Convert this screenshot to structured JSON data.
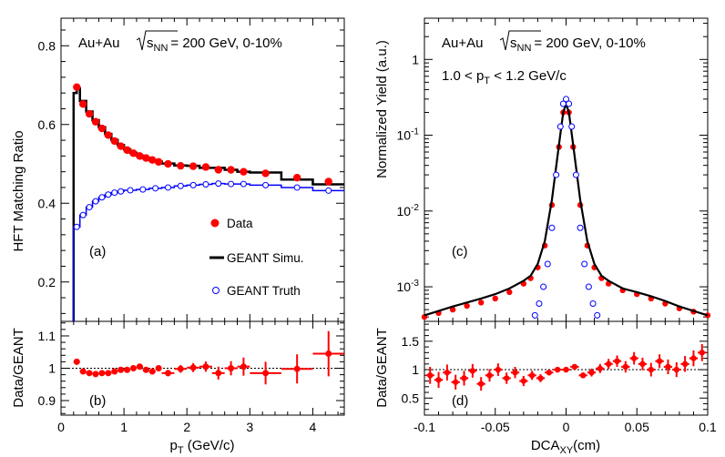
{
  "colors": {
    "data": "#ff0000",
    "simu": "#000000",
    "truth": "#0000ff"
  },
  "left_top": {
    "ylabel": "HFT Matching Ratio",
    "header": {
      "system": "Au+Au",
      "sqrt": "s",
      "sub": "NN",
      "rest": "= 200 GeV, 0-10%"
    },
    "panel_label": "(a)",
    "legend": [
      "Data",
      "GEANT Simu.",
      "GEANT Truth"
    ]
  },
  "left_bottom": {
    "ylabel": "Data/GEANT",
    "panel_label": "(b)"
  },
  "left_xlabel": {
    "main": "p",
    "sub": "T",
    "rest": " (GeV/c)"
  },
  "right_top": {
    "ylabel": "Normalized Yield (a.u.)",
    "header": {
      "system": "Au+Au",
      "sqrt": "s",
      "sub": "NN",
      "rest": "= 200 GeV, 0-10%"
    },
    "pt_range": {
      "pre": "1.0 < p",
      "sub": "T",
      "post": " < 1.2 GeV/c"
    },
    "panel_label": "(c)"
  },
  "right_bottom": {
    "ylabel": "Data/GEANT",
    "panel_label": "(d)"
  },
  "right_xlabel": {
    "main": "DCA",
    "sub": "XY",
    "rest": "(cm)"
  },
  "chart_data": [
    {
      "type": "line",
      "panel": "a",
      "xlabel": "pT (GeV/c)",
      "ylabel": "HFT Matching Ratio",
      "xlim": [
        0,
        4.5
      ],
      "ylim": [
        0.1,
        0.87
      ],
      "xticks": [
        0,
        1,
        2,
        3,
        4
      ],
      "yticks": [
        0.2,
        0.4,
        0.6,
        0.8
      ],
      "series": [
        {
          "name": "Data",
          "style": "markers",
          "x": [
            0.25,
            0.35,
            0.45,
            0.55,
            0.65,
            0.75,
            0.85,
            0.95,
            1.05,
            1.15,
            1.25,
            1.35,
            1.45,
            1.55,
            1.7,
            1.9,
            2.1,
            2.3,
            2.5,
            2.7,
            2.9,
            3.25,
            3.75,
            4.25
          ],
          "y": [
            0.695,
            0.652,
            0.627,
            0.607,
            0.59,
            0.573,
            0.558,
            0.545,
            0.535,
            0.527,
            0.52,
            0.515,
            0.51,
            0.505,
            0.5,
            0.495,
            0.494,
            0.492,
            0.485,
            0.485,
            0.48,
            0.476,
            0.465,
            0.455
          ]
        },
        {
          "name": "GEANT Simu.",
          "style": "step",
          "edges": [
            0.2,
            0.25,
            0.3,
            0.4,
            0.5,
            0.6,
            0.7,
            0.8,
            0.9,
            1.0,
            1.1,
            1.2,
            1.3,
            1.4,
            1.5,
            1.6,
            1.8,
            2.0,
            2.2,
            2.4,
            2.6,
            2.8,
            3.0,
            3.5,
            4.0,
            4.5
          ],
          "y": [
            0.68,
            0.692,
            0.66,
            0.633,
            0.611,
            0.593,
            0.576,
            0.561,
            0.548,
            0.537,
            0.528,
            0.521,
            0.515,
            0.51,
            0.506,
            0.501,
            0.496,
            0.495,
            0.49,
            0.49,
            0.485,
            0.48,
            0.478,
            0.46,
            0.448
          ]
        },
        {
          "name": "GEANT Truth",
          "style": "step+markers",
          "edges": [
            0.2,
            0.3,
            0.4,
            0.5,
            0.6,
            0.7,
            0.8,
            0.9,
            1.0,
            1.2,
            1.4,
            1.6,
            1.8,
            2.0,
            2.2,
            2.4,
            2.6,
            2.8,
            3.0,
            3.5,
            4.0,
            4.5
          ],
          "y": [
            0.34,
            0.37,
            0.39,
            0.405,
            0.415,
            0.422,
            0.427,
            0.43,
            0.433,
            0.435,
            0.438,
            0.44,
            0.444,
            0.446,
            0.448,
            0.45,
            0.449,
            0.449,
            0.446,
            0.44,
            0.432
          ],
          "marker_x": [
            0.25,
            0.35,
            0.45,
            0.55,
            0.65,
            0.75,
            0.85,
            0.95,
            1.1,
            1.3,
            1.5,
            1.7,
            1.9,
            2.1,
            2.3,
            2.5,
            2.7,
            2.9,
            3.25,
            3.75,
            4.25
          ],
          "marker_y": [
            0.34,
            0.37,
            0.39,
            0.405,
            0.415,
            0.422,
            0.427,
            0.43,
            0.433,
            0.435,
            0.438,
            0.44,
            0.444,
            0.446,
            0.448,
            0.45,
            0.449,
            0.449,
            0.446,
            0.44,
            0.432
          ]
        }
      ]
    },
    {
      "type": "scatter",
      "panel": "b",
      "xlabel": "pT (GeV/c)",
      "ylabel": "Data/GEANT",
      "xlim": [
        0,
        4.5
      ],
      "ylim": [
        0.855,
        1.145
      ],
      "xticks": [
        0,
        1,
        2,
        3,
        4
      ],
      "yticks": [
        0.9,
        1,
        1.1
      ],
      "reference_line": 1,
      "series": [
        {
          "name": "Data/GEANT",
          "x": [
            0.25,
            0.35,
            0.45,
            0.55,
            0.65,
            0.75,
            0.85,
            0.95,
            1.05,
            1.15,
            1.25,
            1.35,
            1.45,
            1.55,
            1.7,
            1.9,
            2.1,
            2.3,
            2.5,
            2.7,
            2.9,
            3.25,
            3.75,
            4.25
          ],
          "y": [
            1.02,
            0.99,
            0.985,
            0.982,
            0.985,
            0.985,
            0.99,
            0.995,
            0.995,
            1.0,
            1.005,
            0.995,
            0.99,
            1.0,
            0.985,
            0.998,
            1.002,
            1.005,
            0.985,
            1.0,
            1.005,
            0.985,
            0.998,
            1.045
          ],
          "xerr": [
            0.05,
            0.05,
            0.05,
            0.05,
            0.05,
            0.05,
            0.05,
            0.05,
            0.05,
            0.05,
            0.05,
            0.05,
            0.05,
            0.05,
            0.1,
            0.1,
            0.1,
            0.1,
            0.1,
            0.1,
            0.1,
            0.25,
            0.25,
            0.25
          ],
          "yerr": [
            0.005,
            0.005,
            0.005,
            0.005,
            0.005,
            0.005,
            0.005,
            0.005,
            0.005,
            0.005,
            0.006,
            0.006,
            0.007,
            0.008,
            0.01,
            0.012,
            0.014,
            0.016,
            0.02,
            0.022,
            0.028,
            0.035,
            0.045,
            0.07
          ]
        }
      ]
    },
    {
      "type": "line",
      "panel": "c",
      "xlabel": "DCAXY(cm)",
      "ylabel": "Normalized Yield (a.u.)",
      "xlim": [
        -0.1,
        0.1
      ],
      "ylim": [
        0.00035,
        3.5
      ],
      "yscale": "log",
      "xticks": [
        -0.1,
        -0.05,
        0,
        0.05,
        0.1
      ],
      "yticks": [
        0.001,
        0.01,
        0.1,
        1
      ],
      "ytick_labels": [
        "10^-3",
        "10^-2",
        "10^-1",
        "1"
      ],
      "series": [
        {
          "name": "Data",
          "style": "markers",
          "x": [
            -0.1,
            -0.09,
            -0.08,
            -0.07,
            -0.06,
            -0.05,
            -0.04,
            -0.03,
            -0.025,
            -0.02,
            -0.015,
            -0.01,
            -0.005,
            -0.002,
            0,
            0.002,
            0.005,
            0.01,
            0.015,
            0.02,
            0.025,
            0.03,
            0.04,
            0.05,
            0.06,
            0.07,
            0.08,
            0.09,
            0.1
          ],
          "y": [
            0.0004,
            0.00045,
            0.0005,
            0.00056,
            0.00062,
            0.0007,
            0.00085,
            0.0011,
            0.0013,
            0.0018,
            0.0035,
            0.012,
            0.07,
            0.2,
            0.28,
            0.2,
            0.07,
            0.012,
            0.0035,
            0.0018,
            0.0013,
            0.0011,
            0.0009,
            0.0008,
            0.0007,
            0.0006,
            0.00052,
            0.00047,
            0.00042
          ]
        },
        {
          "name": "GEANT Simu.",
          "style": "step",
          "x": [
            -0.1,
            -0.09,
            -0.08,
            -0.07,
            -0.06,
            -0.05,
            -0.04,
            -0.03,
            -0.025,
            -0.02,
            -0.015,
            -0.01,
            -0.005,
            -0.002,
            0,
            0.002,
            0.005,
            0.01,
            0.015,
            0.02,
            0.025,
            0.03,
            0.04,
            0.05,
            0.06,
            0.07,
            0.08,
            0.09,
            0.1
          ],
          "y": [
            0.00042,
            0.00048,
            0.00055,
            0.00062,
            0.0007,
            0.0008,
            0.00095,
            0.0012,
            0.0014,
            0.002,
            0.004,
            0.014,
            0.075,
            0.2,
            0.26,
            0.2,
            0.075,
            0.014,
            0.004,
            0.002,
            0.0014,
            0.0012,
            0.00095,
            0.00085,
            0.00075,
            0.00065,
            0.00055,
            0.00048,
            0.00042
          ]
        },
        {
          "name": "GEANT Truth",
          "style": "markers",
          "x": [
            -0.022,
            -0.019,
            -0.016,
            -0.013,
            -0.01,
            -0.007,
            -0.004,
            -0.002,
            0,
            0.002,
            0.004,
            0.007,
            0.01,
            0.013,
            0.016,
            0.019,
            0.022
          ],
          "y": [
            0.00042,
            0.0006,
            0.001,
            0.002,
            0.006,
            0.03,
            0.13,
            0.26,
            0.3,
            0.26,
            0.13,
            0.03,
            0.006,
            0.002,
            0.001,
            0.0006,
            0.00042
          ]
        }
      ]
    },
    {
      "type": "scatter",
      "panel": "d",
      "xlabel": "DCAXY(cm)",
      "ylabel": "Data/GEANT",
      "xlim": [
        -0.1,
        0.1
      ],
      "ylim": [
        0.2,
        1.85
      ],
      "xticks": [
        -0.1,
        -0.05,
        0,
        0.05,
        0.1
      ],
      "yticks": [
        0.5,
        1,
        1.5
      ],
      "reference_line": 1,
      "series": [
        {
          "name": "Data/GEANT",
          "x": [
            -0.096,
            -0.09,
            -0.084,
            -0.078,
            -0.072,
            -0.066,
            -0.06,
            -0.054,
            -0.048,
            -0.042,
            -0.036,
            -0.03,
            -0.024,
            -0.018,
            -0.012,
            -0.006,
            0,
            0.006,
            0.012,
            0.018,
            0.024,
            0.03,
            0.036,
            0.042,
            0.048,
            0.054,
            0.06,
            0.066,
            0.072,
            0.078,
            0.084,
            0.09,
            0.096
          ],
          "y": [
            0.9,
            0.82,
            0.95,
            0.78,
            0.85,
            0.98,
            0.75,
            0.9,
            1.0,
            0.85,
            0.95,
            0.8,
            0.9,
            0.85,
            0.95,
            1.0,
            1.0,
            1.05,
            0.9,
            0.95,
            1.02,
            1.1,
            1.15,
            1.05,
            1.2,
            1.1,
            1.0,
            1.15,
            1.05,
            1.0,
            1.1,
            1.2,
            1.3
          ],
          "yerr": [
            0.15,
            0.14,
            0.14,
            0.13,
            0.13,
            0.12,
            0.12,
            0.11,
            0.11,
            0.1,
            0.1,
            0.09,
            0.08,
            0.07,
            0.05,
            0.04,
            0.03,
            0.04,
            0.05,
            0.07,
            0.08,
            0.09,
            0.1,
            0.1,
            0.11,
            0.11,
            0.12,
            0.12,
            0.13,
            0.13,
            0.14,
            0.14,
            0.15
          ]
        }
      ]
    }
  ]
}
